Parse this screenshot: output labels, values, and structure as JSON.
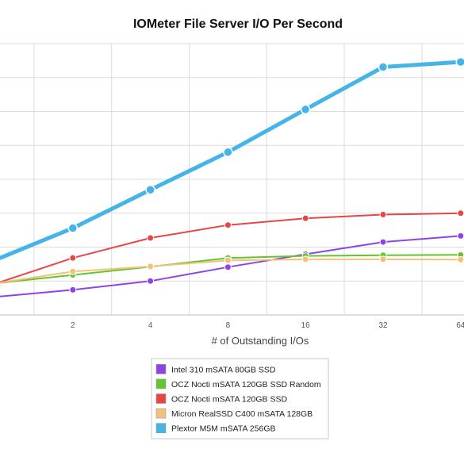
{
  "chart_data": {
    "type": "line",
    "title": "IOMeter File Server I/O Per Second",
    "xlabel": "# of Outstanding I/Os",
    "ylabel": "",
    "x": [
      1,
      2,
      4,
      8,
      16,
      32,
      64
    ],
    "x_tick_labels": [
      "",
      "2",
      "4",
      "8",
      "16",
      "32",
      "64"
    ],
    "ylim": [
      0,
      8000
    ],
    "grid": true,
    "legend_position": "bottom",
    "series": [
      {
        "name": "Intel 310 mSATA 80GB SSD",
        "color": "#8e44e5",
        "values": [
          530,
          740,
          1000,
          1410,
          1790,
          2150,
          2330
        ]
      },
      {
        "name": "OCZ Nocti mSATA 120GB SSD Random",
        "color": "#66c42f",
        "values": [
          930,
          1180,
          1420,
          1680,
          1740,
          1760,
          1770
        ]
      },
      {
        "name": "OCZ Nocti mSATA 120GB SSD",
        "color": "#e84545",
        "values": [
          920,
          1680,
          2270,
          2650,
          2850,
          2960,
          3000
        ]
      },
      {
        "name": "Micron RealSSD C400 mSATA 128GB",
        "color": "#f0c27a",
        "values": [
          930,
          1280,
          1430,
          1610,
          1640,
          1640,
          1630
        ]
      },
      {
        "name": "Plextor M5M mSATA 256GB",
        "color": "#45b5e8",
        "values": [
          1620,
          2560,
          3690,
          4800,
          6060,
          7310,
          7460
        ]
      }
    ]
  }
}
